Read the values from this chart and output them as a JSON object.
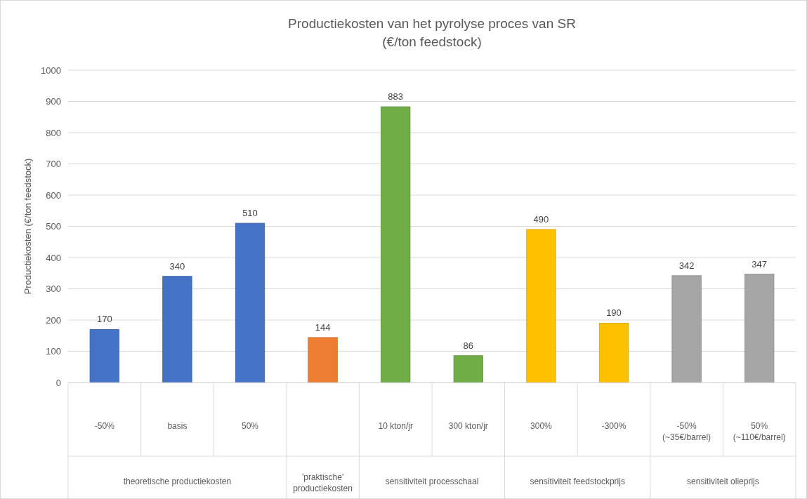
{
  "chart_data": {
    "type": "bar",
    "title": "Productiekosten van het pyrolyse proces van SR",
    "subtitle": "(€/ton feedstock)",
    "ylabel": "Productiekosten (€/ton feedstock)",
    "categories": [
      "-50%",
      "basis",
      "50%",
      null,
      "10 kton/jr",
      "300 kton/jr",
      "300%",
      "-300%",
      "-50% (~35€/barrel)",
      "50% (~110€/barrel)"
    ],
    "values": [
      170,
      340,
      510,
      144,
      883,
      86,
      490,
      190,
      342,
      347
    ],
    "colors": [
      "#4472c4",
      "#4472c4",
      "#4472c4",
      "#ed7d31",
      "#70ad47",
      "#70ad47",
      "#ffc000",
      "#ffc000",
      "#a5a5a5",
      "#a5a5a5"
    ],
    "annotations": [
      "theoretische productiekosten",
      "'praktische' productiekosten",
      "sensitiviteit processchaal",
      "sensitiviteit feedstockprijs",
      "sensitiviteit olieprijs"
    ],
    "ylim": [
      0,
      1000
    ],
    "yticks": [
      0,
      100,
      200,
      300,
      400,
      500,
      600,
      700,
      800,
      900,
      1000
    ],
    "grid": "y",
    "data_labels": true
  }
}
